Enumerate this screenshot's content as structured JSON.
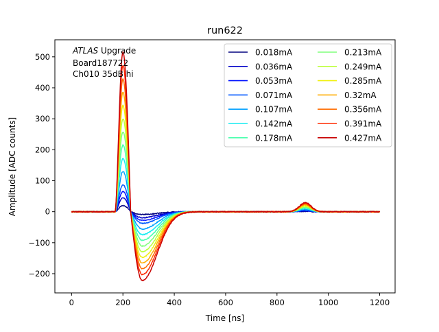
{
  "chart_data": {
    "type": "line",
    "title": "run622",
    "xlabel": "Time [ns]",
    "ylabel": "Amplitude [ADC counts]",
    "xlim": [
      -65,
      1260
    ],
    "ylim": [
      -262,
      555
    ],
    "xticks": [
      0,
      200,
      400,
      600,
      800,
      1000,
      1200
    ],
    "yticks": [
      -200,
      -100,
      0,
      100,
      200,
      300,
      400,
      500
    ],
    "grid": false,
    "legend_position": "top-right",
    "legend_columns": 2,
    "annotation": {
      "experiment": "ATLAS",
      "experiment_suffix": " Upgrade",
      "line2": "Board187722",
      "line3": "Ch010 35dB hi"
    },
    "pulse_model": {
      "x_start": 0,
      "x_end": 1200,
      "rise_start": 170,
      "peak_time": 200,
      "zero_crossing": 230,
      "undershoot_time": 275,
      "undershoot_ratio": -0.43,
      "reflection_time": 910,
      "reflection_ratio": 0.058
    },
    "series": [
      {
        "name": "0.018mA",
        "peak": 20,
        "color": "#00007f"
      },
      {
        "name": "0.036mA",
        "peak": 45,
        "color": "#0000c8"
      },
      {
        "name": "0.053mA",
        "peak": 65,
        "color": "#0010ff"
      },
      {
        "name": "0.071mA",
        "peak": 87,
        "color": "#0058ff"
      },
      {
        "name": "0.107mA",
        "peak": 130,
        "color": "#00a0ff"
      },
      {
        "name": "0.142mA",
        "peak": 172,
        "color": "#13ecf1"
      },
      {
        "name": "0.178mA",
        "peak": 215,
        "color": "#49ffad"
      },
      {
        "name": "0.213mA",
        "peak": 258,
        "color": "#7eff7a"
      },
      {
        "name": "0.249mA",
        "peak": 300,
        "color": "#bcff3b"
      },
      {
        "name": "0.285mA",
        "peak": 343,
        "color": "#f0f00e"
      },
      {
        "name": "0.32mA",
        "peak": 386,
        "color": "#ffae00"
      },
      {
        "name": "0.356mA",
        "peak": 428,
        "color": "#ff6c00"
      },
      {
        "name": "0.391mA",
        "peak": 472,
        "color": "#ff2a00"
      },
      {
        "name": "0.427mA",
        "peak": 515,
        "color": "#c80000"
      }
    ]
  }
}
